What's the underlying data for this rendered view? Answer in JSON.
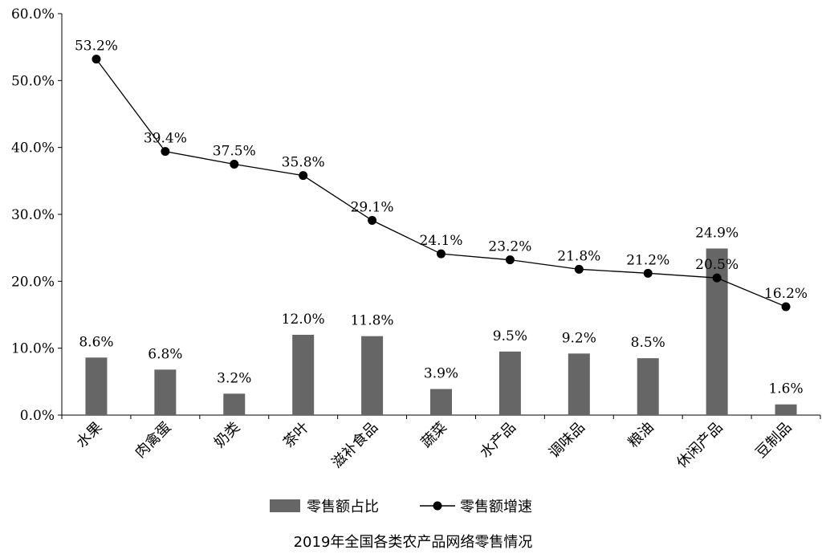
{
  "chart_data": {
    "type": "bar",
    "title": "2019年全国各类农产品网络零售情况",
    "categories": [
      "水果",
      "肉禽蛋",
      "奶类",
      "茶叶",
      "滋补食品",
      "蔬菜",
      "水产品",
      "调味品",
      "粮油",
      "休闲产品",
      "豆制品"
    ],
    "series": [
      {
        "name": "零售额占比",
        "type": "bar",
        "values": [
          8.6,
          6.8,
          3.2,
          12.0,
          11.8,
          3.9,
          9.5,
          9.2,
          8.5,
          24.9,
          1.6
        ],
        "labels": [
          "8.6%",
          "6.8%",
          "3.2%",
          "12.0%",
          "11.8%",
          "3.9%",
          "9.5%",
          "9.2%",
          "8.5%",
          "24.9%",
          "1.6%"
        ],
        "color": "#666666"
      },
      {
        "name": "零售额增速",
        "type": "line",
        "values": [
          53.2,
          39.4,
          37.5,
          35.8,
          29.1,
          24.1,
          23.2,
          21.8,
          21.2,
          20.5,
          16.2
        ],
        "labels": [
          "53.2%",
          "39.4%",
          "37.5%",
          "35.8%",
          "29.1%",
          "24.1%",
          "23.2%",
          "21.8%",
          "21.2%",
          "20.5%",
          "16.2%"
        ],
        "color": "#000000"
      }
    ],
    "ylim": [
      0,
      60
    ],
    "yticks": [
      "0.0%",
      "10.0%",
      "20.0%",
      "30.0%",
      "40.0%",
      "50.0%",
      "60.0%"
    ],
    "grid": false,
    "legend_position": "bottom"
  }
}
